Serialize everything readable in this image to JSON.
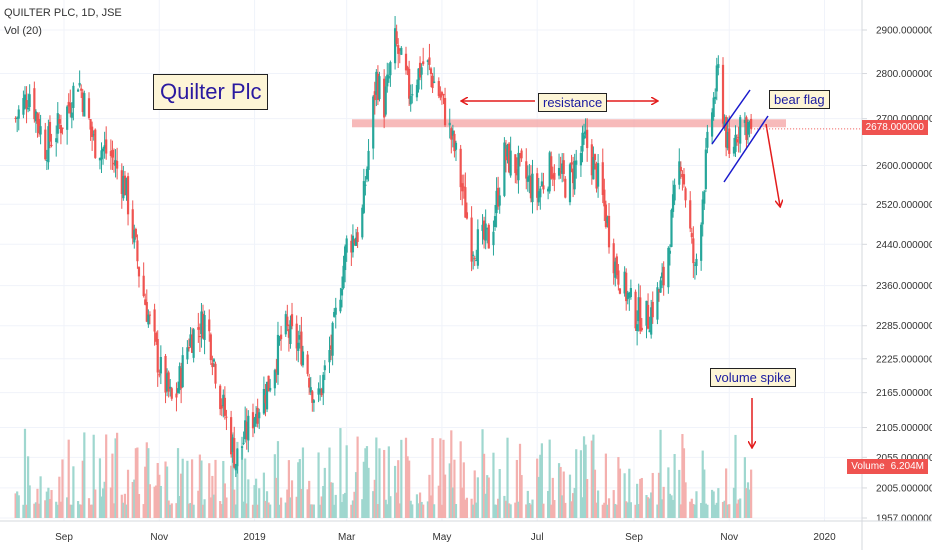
{
  "header": {
    "symbol_line": "QUILTER PLC, 1D, JSE",
    "volume_line": "Vol (20)"
  },
  "annotations": {
    "title": "Quilter Plc",
    "resistance": "resistance",
    "bear_flag": "bear flag",
    "volume_spike": "volume spike"
  },
  "price_tag": {
    "label": "2678.000000",
    "color": "#ef5350"
  },
  "volume_tag": {
    "key": "Volume",
    "label": "6.204M",
    "color": "#ef5350"
  },
  "colors": {
    "up": "#26a69a",
    "down": "#ef5350",
    "vol_up": "#9fd7cf",
    "vol_down": "#f4b0ae",
    "resistance_band": "#f4a3a3",
    "arrow": "#e31c1c",
    "flag_lines": "#1a1acc",
    "text": "#333333"
  },
  "chart_data": {
    "type": "candlestick",
    "x_ticks": [
      "Sep",
      "Nov",
      "2019",
      "Mar",
      "May",
      "Jul",
      "Sep",
      "Nov",
      "2020"
    ],
    "y_ticks": [
      "2900.000000",
      "2800.000000",
      "2700.000000",
      "2600.000000",
      "2520.000000",
      "2440.000000",
      "2360.000000",
      "2285.000000",
      "2225.000000",
      "2165.000000",
      "2105.000000",
      "2055.000000",
      "2005.000000",
      "1957.000000"
    ],
    "y_tick_values": [
      2900,
      2800,
      2700,
      2600,
      2520,
      2440,
      2360,
      2285,
      2225,
      2165,
      2105,
      2055,
      2005,
      1957
    ],
    "y_scale": "log",
    "last_price": 2678,
    "resistance_level": 2690,
    "last_volume": "6.204M",
    "price_path": [
      [
        "2018-08-01",
        2700
      ],
      [
        "2018-08-10",
        2760
      ],
      [
        "2018-08-20",
        2640
      ],
      [
        "2018-09-01",
        2700
      ],
      [
        "2018-09-10",
        2790
      ],
      [
        "2018-09-20",
        2650
      ],
      [
        "2018-10-01",
        2620
      ],
      [
        "2018-10-10",
        2560
      ],
      [
        "2018-10-20",
        2370
      ],
      [
        "2018-11-01",
        2210
      ],
      [
        "2018-11-10",
        2140
      ],
      [
        "2018-11-20",
        2260
      ],
      [
        "2018-12-01",
        2300
      ],
      [
        "2018-12-10",
        2160
      ],
      [
        "2018-12-20",
        2050
      ],
      [
        "2019-01-01",
        2130
      ],
      [
        "2019-01-10",
        2180
      ],
      [
        "2019-01-20",
        2280
      ],
      [
        "2019-02-01",
        2240
      ],
      [
        "2019-02-10",
        2140
      ],
      [
        "2019-02-20",
        2260
      ],
      [
        "2019-03-01",
        2440
      ],
      [
        "2019-03-10",
        2470
      ],
      [
        "2019-03-20",
        2790
      ],
      [
        "2019-03-25",
        2730
      ],
      [
        "2019-04-01",
        2870
      ],
      [
        "2019-04-10",
        2760
      ],
      [
        "2019-04-20",
        2830
      ],
      [
        "2019-05-01",
        2740
      ],
      [
        "2019-05-10",
        2620
      ],
      [
        "2019-05-20",
        2440
      ],
      [
        "2019-06-01",
        2450
      ],
      [
        "2019-06-10",
        2620
      ],
      [
        "2019-06-20",
        2590
      ],
      [
        "2019-07-01",
        2540
      ],
      [
        "2019-07-10",
        2600
      ],
      [
        "2019-07-20",
        2560
      ],
      [
        "2019-08-01",
        2650
      ],
      [
        "2019-08-10",
        2560
      ],
      [
        "2019-08-20",
        2400
      ],
      [
        "2019-09-01",
        2310
      ],
      [
        "2019-09-10",
        2300
      ],
      [
        "2019-09-20",
        2370
      ],
      [
        "2019-10-01",
        2620
      ],
      [
        "2019-10-10",
        2380
      ],
      [
        "2019-10-20",
        2700
      ],
      [
        "2019-10-25",
        2800
      ],
      [
        "2019-11-01",
        2610
      ],
      [
        "2019-11-08",
        2700
      ],
      [
        "2019-11-15",
        2678
      ]
    ]
  }
}
